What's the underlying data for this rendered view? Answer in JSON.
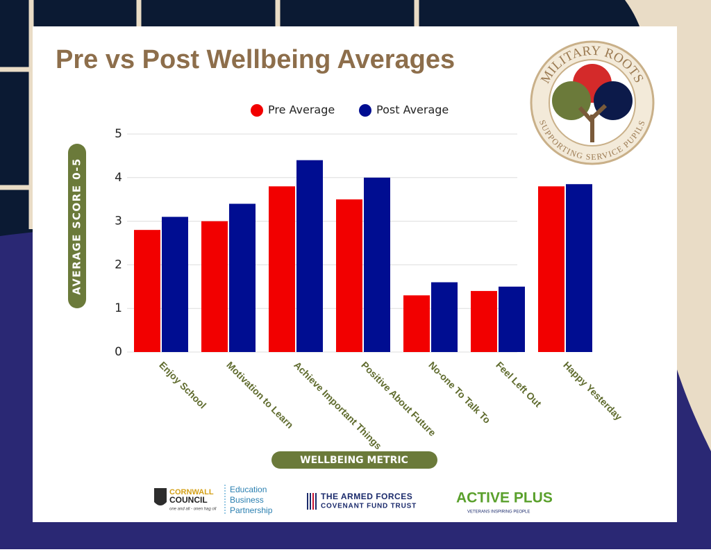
{
  "chart_data": {
    "type": "bar",
    "title": "Pre vs Post Wellbeing Averages",
    "y_label": "AVERAGE SCORE 0-5",
    "x_label": "WELLBEING METRIC",
    "categories": [
      "Enjoy School",
      "Motivation to Learn",
      "Achieve Important Things",
      "Positive About Future",
      "No-one To Talk To",
      "Feel Left Out",
      "Happy Yesterday"
    ],
    "series": [
      {
        "name": "Pre Average",
        "color": "#f20000",
        "values": [
          2.8,
          3.0,
          3.8,
          3.5,
          1.3,
          1.4,
          3.8
        ]
      },
      {
        "name": "Post Average",
        "color": "#000d91",
        "values": [
          3.1,
          3.4,
          4.4,
          4.0,
          1.6,
          1.5,
          3.85
        ]
      }
    ],
    "ylim": [
      0,
      5
    ],
    "yticks": [
      0,
      1,
      2,
      3,
      4,
      5
    ],
    "grid": true,
    "legend": "top"
  },
  "logos": {
    "badge_top": "MILITARY ROOTS",
    "badge_bottom": "SUPPORTING SERVICE PUPILS",
    "cornwall": "CORNWALL",
    "council": "COUNCIL",
    "motto": "one and all - onen hag oll",
    "ebp": [
      "Education",
      "Business",
      "Partnership"
    ],
    "afcft": [
      "THE ARMED FORCES",
      "COVENANT FUND TRUST"
    ],
    "active": "ACTIVE PLUS",
    "active_sub": "VETERANS INSPIRING PEOPLE"
  }
}
